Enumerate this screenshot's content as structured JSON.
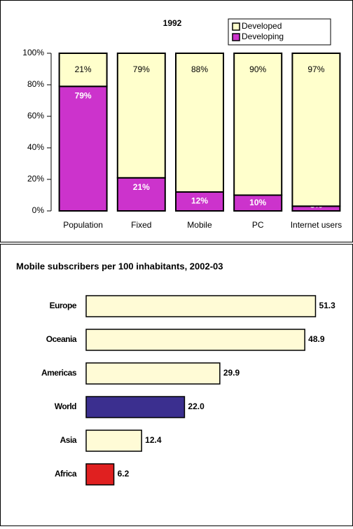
{
  "chart_data": [
    {
      "type": "column",
      "title": "1992",
      "categories": [
        "Population",
        "Fixed",
        "Mobile",
        "PC",
        "Internet users"
      ],
      "series": [
        {
          "name": "Developing",
          "color": "#cc33cc",
          "values": [
            79,
            21,
            12,
            10,
            3
          ],
          "value_labels": [
            "79%",
            "21%",
            "12%",
            "10%",
            "3%"
          ]
        },
        {
          "name": "Developed",
          "color": "#ffffcc",
          "values": [
            21,
            79,
            88,
            90,
            97
          ],
          "value_labels": [
            "21%",
            "79%",
            "88%",
            "90%",
            "97%"
          ]
        }
      ],
      "ylim": [
        0,
        100
      ],
      "yticks": [
        {
          "value": 0,
          "label": "0%"
        },
        {
          "value": 20,
          "label": "20%"
        },
        {
          "value": 40,
          "label": "40%"
        },
        {
          "value": 60,
          "label": "60%"
        },
        {
          "value": 80,
          "label": "80%"
        },
        {
          "value": 100,
          "label": "100%"
        }
      ],
      "legend": "top-right"
    },
    {
      "type": "bar",
      "title": "Mobile subscribers per 100 inhabitants, 2002-03",
      "categories": [
        "Europe",
        "Oceania",
        "Americas",
        "World",
        "Asia",
        "Africa"
      ],
      "values": [
        51.3,
        48.9,
        29.9,
        22.0,
        12.4,
        6.2
      ],
      "value_labels": [
        "51.3",
        "48.9",
        "29.9",
        "22.0",
        "12.4",
        "6.2"
      ],
      "colors": [
        "#fffbd6",
        "#fffbd6",
        "#fffbd6",
        "#3b2f8f",
        "#fffbd6",
        "#e02020"
      ],
      "xlim": [
        0,
        60
      ]
    }
  ]
}
